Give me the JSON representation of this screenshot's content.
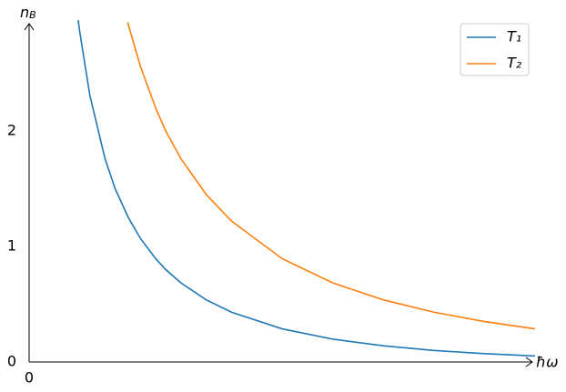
{
  "chart_data": {
    "type": "line",
    "x_label": "ħω",
    "y_label": {
      "text": "n",
      "subscript": "B"
    },
    "x": [
      0.097,
      0.1,
      0.12,
      0.15,
      0.17,
      0.195,
      0.2,
      0.22,
      0.25,
      0.27,
      0.3,
      0.35,
      0.4,
      0.5,
      0.6,
      0.7,
      0.8,
      0.9,
      1.0
    ],
    "series": [
      {
        "name": "T₁",
        "color": "#1f77b4",
        "values": [
          2.96,
          2.86,
          2.31,
          1.76,
          1.5,
          1.26,
          1.22,
          1.07,
          0.895,
          0.8,
          0.685,
          0.538,
          0.431,
          0.287,
          0.198,
          0.14,
          0.0998,
          0.072,
          0.052
        ]
      },
      {
        "name": "T₂",
        "color": "#ff7f0e",
        "values": [
          null,
          null,
          null,
          null,
          null,
          2.94,
          2.86,
          2.56,
          2.2,
          2.0,
          1.76,
          1.45,
          1.22,
          0.895,
          0.685,
          0.538,
          0.431,
          0.35,
          0.287
        ]
      }
    ],
    "xlim": [
      0,
      1
    ],
    "ylim": [
      0,
      3
    ],
    "xticks": [
      0
    ],
    "yticks": [
      0,
      1,
      2
    ],
    "grid": false,
    "legend": "upper right"
  }
}
